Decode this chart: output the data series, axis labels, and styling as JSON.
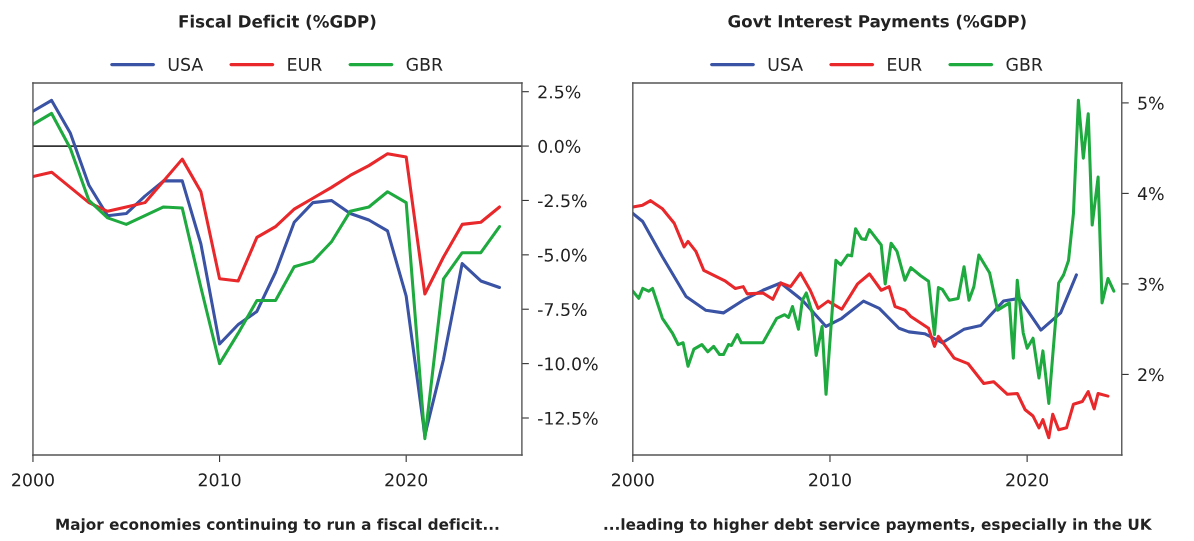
{
  "chart_data": [
    {
      "type": "line",
      "title": "Fiscal Deficit (%GDP)",
      "legend": "top",
      "grid": false,
      "marker": "none",
      "line_style": "solid",
      "x": [
        2000,
        2001,
        2002,
        2003,
        2004,
        2005,
        2006,
        2007,
        2008,
        2009,
        2010,
        2011,
        2012,
        2013,
        2014,
        2015,
        2016,
        2017,
        2018,
        2019,
        2020,
        2021,
        2022,
        2023,
        2024,
        2025
      ],
      "xlim": [
        2000,
        2026.2
      ],
      "xticks": [
        2000,
        2010,
        2020
      ],
      "ylim": [
        -14.2,
        2.9
      ],
      "yticks": [
        {
          "value": 2.5,
          "label": "2.5%"
        },
        {
          "value": 0,
          "label": "0.0%"
        },
        {
          "value": -2.5,
          "label": "-2.5%"
        },
        {
          "value": -5,
          "label": "-5.0%"
        },
        {
          "value": -7.5,
          "label": "-7.5%"
        },
        {
          "value": -10,
          "label": "-10.0%"
        },
        {
          "value": -12.5,
          "label": "-12.5%"
        }
      ],
      "ref_lines": [
        {
          "axis": "y",
          "value": 0,
          "color": "#333333"
        }
      ],
      "annotations": [
        "Major economies continuing to run a fiscal deficit..."
      ],
      "series": [
        {
          "name": "USA",
          "color": "#3a53a4",
          "values": [
            1.6,
            2.1,
            0.6,
            -1.8,
            -3.2,
            -3.1,
            -2.3,
            -1.6,
            -1.6,
            -4.5,
            -9.1,
            -8.2,
            -7.6,
            -5.8,
            -3.5,
            -2.6,
            -2.5,
            -3.1,
            -3.4,
            -3.9,
            -6.9,
            -13.3,
            -9.8,
            -5.4,
            -6.2,
            -6.5
          ]
        },
        {
          "name": "EUR",
          "color": "#e8282b",
          "values": [
            -1.4,
            -1.2,
            -1.9,
            -2.6,
            -3.0,
            -2.8,
            -2.6,
            -1.6,
            -0.6,
            -2.1,
            -6.1,
            -6.2,
            -4.2,
            -3.7,
            -2.9,
            -2.4,
            -1.9,
            -1.35,
            -0.9,
            -0.35,
            -0.5,
            -6.8,
            -5.1,
            -3.6,
            -3.5,
            -2.8
          ]
        },
        {
          "name": "GBR",
          "color": "#1faa3f",
          "values": [
            1.0,
            1.5,
            -0.1,
            -2.5,
            -3.3,
            -3.6,
            -3.2,
            -2.8,
            -2.85,
            -6.5,
            -10.0,
            -8.6,
            -7.1,
            -7.1,
            -5.55,
            -5.3,
            -4.4,
            -3.0,
            -2.8,
            -2.1,
            -2.6,
            -13.45,
            -6.1,
            -4.9,
            -4.9,
            -3.7
          ]
        }
      ]
    },
    {
      "type": "line",
      "title": "Govt Interest Payments (%GDP)",
      "legend": "top",
      "grid": false,
      "marker": "none",
      "line_style": "solid",
      "xlim": [
        2000,
        2024.8
      ],
      "xticks": [
        2000,
        2010,
        2020
      ],
      "ylim": [
        1.11,
        5.22
      ],
      "yticks": [
        {
          "value": 2,
          "label": "2%"
        },
        {
          "value": 3,
          "label": "3%"
        },
        {
          "value": 4,
          "label": "4%"
        },
        {
          "value": 5,
          "label": "5%"
        }
      ],
      "annotations": [
        "...leading to higher debt service payments, especially in the UK"
      ],
      "series": [
        {
          "name": "USA",
          "color": "#3a53a4",
          "x": [
            2000.0,
            2000.5,
            2001.5,
            2002.7,
            2003.7,
            2004.6,
            2005.6,
            2006.6,
            2007.5,
            2008.6,
            2009.8,
            2010.6,
            2011.7,
            2012.5,
            2013.5,
            2014.0,
            2014.8,
            2015.7,
            2016.8,
            2017.65,
            2018.8,
            2019.6,
            2020.7,
            2021.7,
            2022.5
          ],
          "values": [
            3.78,
            3.69,
            3.3,
            2.86,
            2.71,
            2.68,
            2.82,
            2.93,
            3.01,
            2.82,
            2.53,
            2.62,
            2.81,
            2.73,
            2.51,
            2.47,
            2.45,
            2.35,
            2.5,
            2.54,
            2.81,
            2.84,
            2.49,
            2.68,
            3.1
          ]
        },
        {
          "name": "EUR",
          "color": "#e8282b",
          "x": [
            2000.0,
            2000.5,
            2000.9,
            2001.5,
            2002.1,
            2002.6,
            2002.8,
            2003.2,
            2003.6,
            2004.7,
            2005.2,
            2005.6,
            2005.8,
            2006.6,
            2007.1,
            2007.5,
            2008.0,
            2008.5,
            2009.0,
            2009.4,
            2009.9,
            2010.6,
            2011.4,
            2012.0,
            2012.6,
            2013.0,
            2013.3,
            2013.8,
            2014.1,
            2015.0,
            2015.3,
            2015.5,
            2016.3,
            2017.0,
            2017.8,
            2018.3,
            2019.0,
            2019.5,
            2019.9,
            2020.3,
            2020.6,
            2020.8,
            2021.1,
            2021.3,
            2021.6,
            2022.0,
            2022.35,
            2022.8,
            2023.1,
            2023.4,
            2023.6,
            2024.1
          ],
          "values": [
            3.85,
            3.87,
            3.92,
            3.83,
            3.67,
            3.41,
            3.47,
            3.36,
            3.15,
            3.03,
            2.95,
            2.97,
            2.89,
            2.9,
            2.83,
            3.01,
            2.97,
            3.12,
            2.93,
            2.73,
            2.81,
            2.72,
            3.0,
            3.11,
            2.93,
            2.97,
            2.75,
            2.71,
            2.64,
            2.51,
            2.31,
            2.42,
            2.18,
            2.12,
            1.9,
            1.92,
            1.78,
            1.79,
            1.61,
            1.54,
            1.41,
            1.5,
            1.3,
            1.56,
            1.39,
            1.41,
            1.67,
            1.7,
            1.81,
            1.62,
            1.79,
            1.76
          ]
        },
        {
          "name": "GBR",
          "color": "#1faa3f",
          "x": [
            2000.0,
            2000.3,
            2000.5,
            2000.8,
            2001.0,
            2001.5,
            2002.0,
            2002.3,
            2002.55,
            2002.8,
            2003.1,
            2003.5,
            2003.8,
            2004.1,
            2004.4,
            2004.6,
            2004.85,
            2005.0,
            2005.3,
            2005.5,
            2006.6,
            2007.3,
            2007.7,
            2007.9,
            2008.1,
            2008.4,
            2008.6,
            2008.8,
            2009.1,
            2009.3,
            2009.6,
            2009.8,
            2010.3,
            2010.55,
            2010.9,
            2011.1,
            2011.3,
            2011.6,
            2011.8,
            2012.0,
            2012.6,
            2012.8,
            2013.1,
            2013.4,
            2013.8,
            2014.1,
            2014.6,
            2015.0,
            2015.3,
            2015.5,
            2015.7,
            2016.05,
            2016.5,
            2016.8,
            2017.05,
            2017.3,
            2017.55,
            2018.1,
            2018.5,
            2019.1,
            2019.3,
            2019.5,
            2019.8,
            2020.0,
            2020.3,
            2020.6,
            2020.8,
            2021.1,
            2021.6,
            2021.85,
            2022.1,
            2022.35,
            2022.6,
            2022.85,
            2023.1,
            2023.3,
            2023.6,
            2023.8,
            2024.1,
            2024.4
          ],
          "values": [
            2.92,
            2.84,
            2.95,
            2.92,
            2.95,
            2.62,
            2.46,
            2.33,
            2.35,
            2.09,
            2.28,
            2.33,
            2.25,
            2.31,
            2.22,
            2.22,
            2.33,
            2.32,
            2.44,
            2.35,
            2.35,
            2.62,
            2.66,
            2.63,
            2.75,
            2.5,
            2.82,
            2.9,
            2.68,
            2.21,
            2.53,
            1.78,
            3.26,
            3.21,
            3.32,
            3.31,
            3.61,
            3.5,
            3.49,
            3.6,
            3.43,
            3.0,
            3.45,
            3.36,
            3.04,
            3.18,
            3.09,
            3.03,
            2.44,
            2.96,
            2.94,
            2.82,
            2.84,
            3.19,
            2.82,
            2.97,
            3.32,
            3.12,
            2.71,
            2.79,
            2.18,
            3.04,
            2.46,
            2.29,
            2.4,
            1.96,
            2.26,
            1.68,
            3.01,
            3.1,
            3.26,
            3.78,
            5.03,
            4.39,
            4.88,
            3.65,
            4.18,
            2.79,
            3.06,
            2.92
          ]
        }
      ]
    }
  ]
}
